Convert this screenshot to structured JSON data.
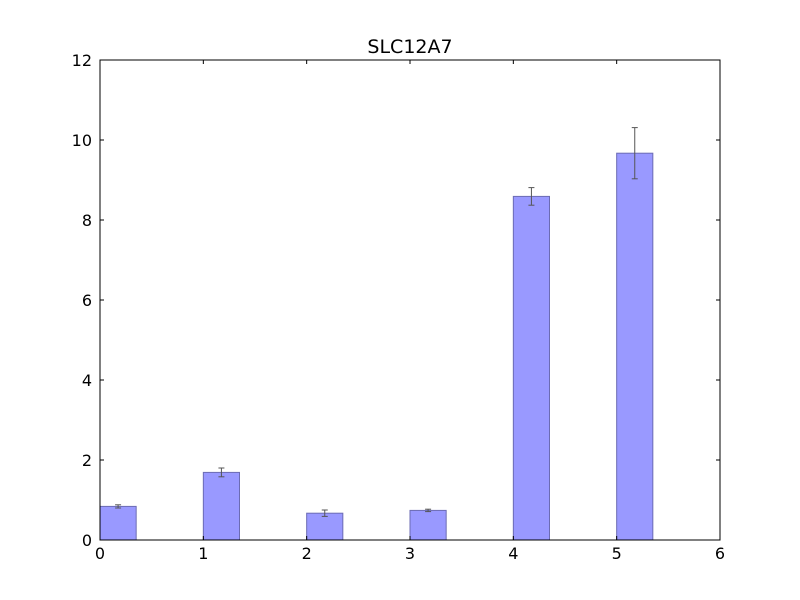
{
  "chart_data": {
    "type": "bar",
    "title": "SLC12A7",
    "xlabel": "",
    "ylabel": "",
    "x": [
      0,
      1,
      2,
      3,
      4,
      5
    ],
    "values": [
      0.84,
      1.69,
      0.67,
      0.74,
      8.59,
      9.67
    ],
    "errors": [
      0.04,
      0.11,
      0.08,
      0.03,
      0.22,
      0.64
    ],
    "bar_width": 0.35,
    "xlim": [
      0,
      6
    ],
    "ylim": [
      0,
      12
    ],
    "xticks": [
      "0",
      "1",
      "2",
      "3",
      "4",
      "5",
      "6"
    ],
    "yticks": [
      "0",
      "2",
      "4",
      "6",
      "8",
      "10",
      "12"
    ],
    "grid": false,
    "colors": {
      "bar_fill": "#9999ff",
      "bar_edge": "#6b6bb3",
      "error_bar": "#555555",
      "axis": "#000000"
    }
  }
}
